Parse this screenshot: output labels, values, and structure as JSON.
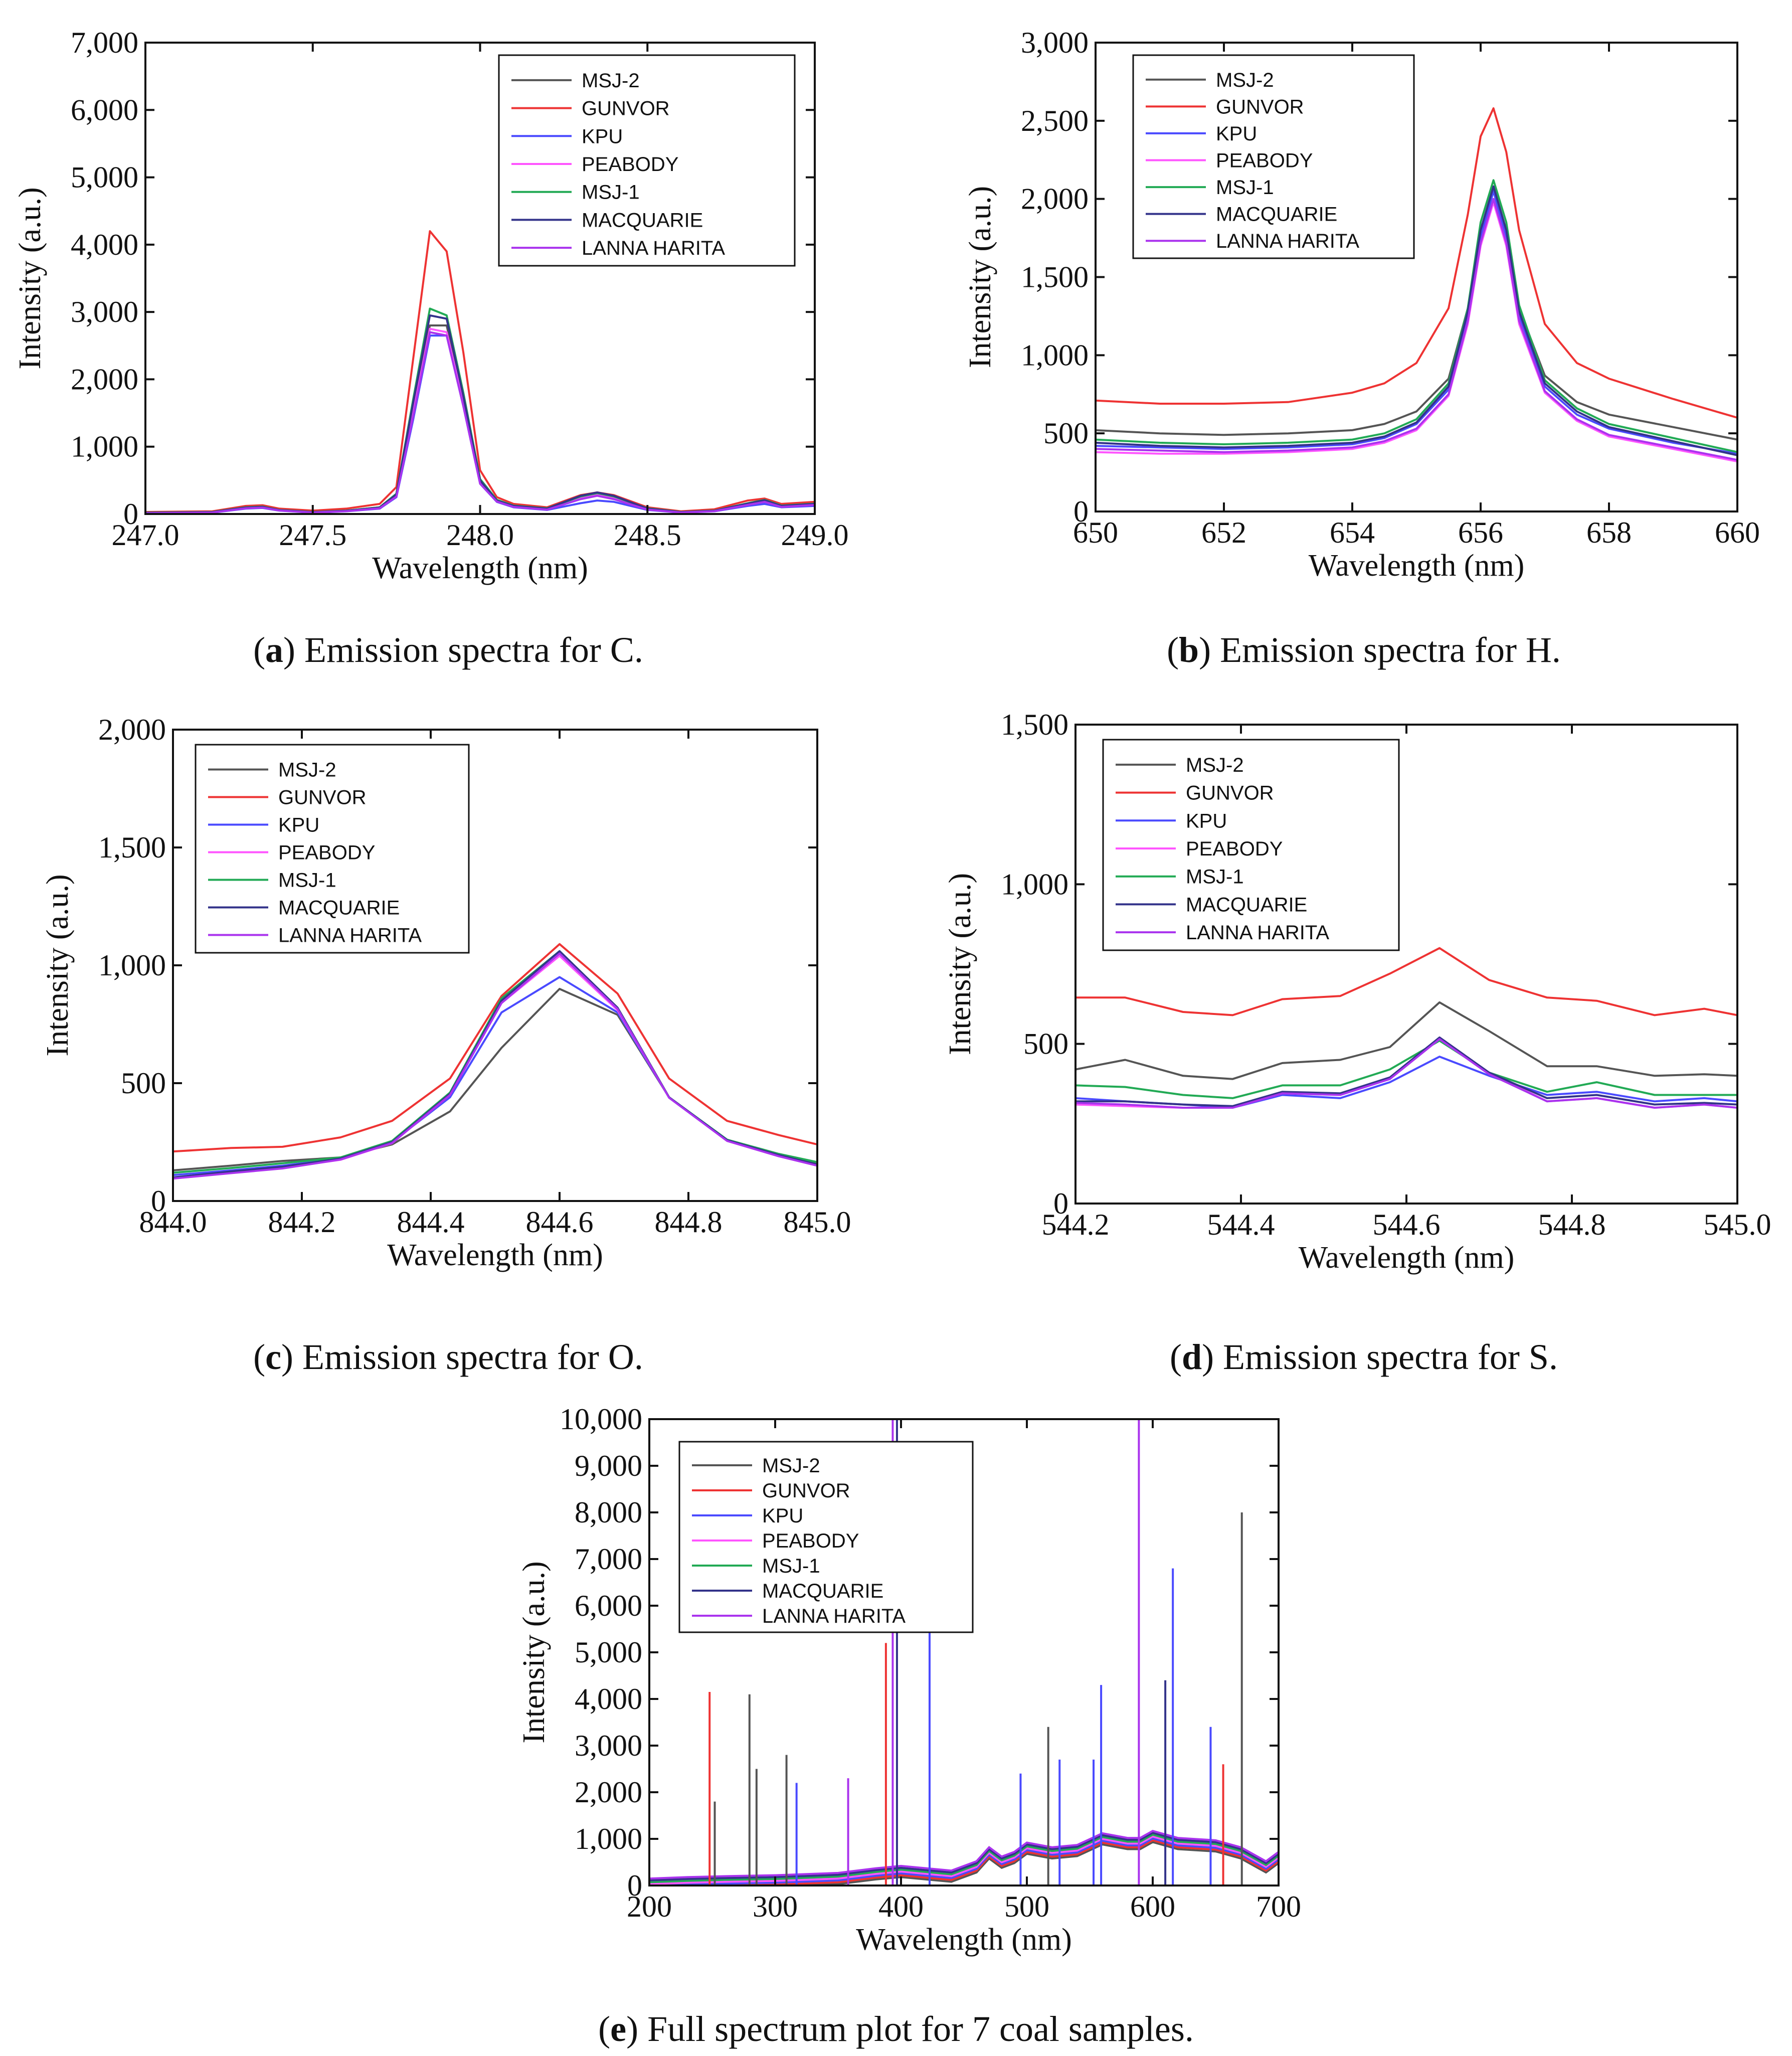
{
  "series_names": [
    "MSJ-2",
    "GUNVOR",
    "KPU",
    "PEABODY",
    "MSJ-1",
    "MACQUARIE",
    "LANNA HARITA"
  ],
  "series_colors": [
    "#555555",
    "#ee3333",
    "#4a4aff",
    "#ff55ff",
    "#22aa55",
    "#33338a",
    "#aa33ee"
  ],
  "chart_data": [
    {
      "id": "a",
      "type": "line",
      "caption": {
        "letter": "a",
        "text": "Emission spectra for C."
      },
      "xlabel": "Wavelength (nm)",
      "ylabel": "Intensity (a.u.)",
      "xlim": [
        247.0,
        249.0
      ],
      "ylim": [
        0,
        7000
      ],
      "xticks": [
        247.0,
        247.5,
        248.0,
        248.5,
        249.0
      ],
      "xtick_labels": [
        "247.0",
        "247.5",
        "248.0",
        "248.5",
        "249.0"
      ],
      "yticks": [
        0,
        1000,
        2000,
        3000,
        4000,
        5000,
        6000,
        7000
      ],
      "ytick_labels": [
        "0",
        "1,000",
        "2,000",
        "3,000",
        "4,000",
        "5,000",
        "6,000",
        "7,000"
      ],
      "legend": "top-right",
      "x": [
        247.0,
        247.1,
        247.2,
        247.3,
        247.35,
        247.4,
        247.5,
        247.6,
        247.7,
        247.75,
        247.8,
        247.85,
        247.9,
        247.95,
        248.0,
        248.05,
        248.1,
        248.2,
        248.3,
        248.35,
        248.4,
        248.5,
        248.6,
        248.7,
        248.8,
        248.85,
        248.9,
        249.0
      ],
      "series": [
        {
          "name": "MSJ-2",
          "values": [
            20,
            25,
            30,
            100,
            110,
            60,
            30,
            50,
            100,
            300,
            1600,
            2800,
            2800,
            1700,
            500,
            200,
            120,
            80,
            250,
            300,
            250,
            80,
            30,
            50,
            150,
            200,
            120,
            150
          ]
        },
        {
          "name": "GUNVOR",
          "values": [
            30,
            35,
            40,
            120,
            130,
            80,
            50,
            80,
            150,
            400,
            2300,
            4200,
            3900,
            2400,
            650,
            250,
            150,
            100,
            280,
            320,
            280,
            100,
            40,
            70,
            200,
            230,
            150,
            180
          ]
        },
        {
          "name": "KPU",
          "values": [
            10,
            15,
            20,
            80,
            90,
            50,
            20,
            40,
            80,
            250,
            1400,
            2650,
            2650,
            1600,
            450,
            180,
            100,
            60,
            160,
            200,
            180,
            60,
            20,
            40,
            120,
            150,
            100,
            120
          ]
        },
        {
          "name": "PEABODY",
          "values": [
            15,
            20,
            25,
            90,
            100,
            55,
            25,
            45,
            90,
            270,
            1500,
            2750,
            2700,
            1650,
            460,
            190,
            110,
            70,
            230,
            280,
            230,
            70,
            25,
            45,
            140,
            190,
            110,
            140
          ]
        },
        {
          "name": "MSJ-1",
          "values": [
            20,
            25,
            30,
            100,
            110,
            60,
            30,
            50,
            100,
            300,
            1700,
            3050,
            2950,
            1800,
            520,
            210,
            125,
            85,
            260,
            310,
            260,
            85,
            30,
            50,
            160,
            210,
            125,
            155
          ]
        },
        {
          "name": "MACQUARIE",
          "values": [
            18,
            22,
            28,
            95,
            105,
            58,
            28,
            48,
            95,
            290,
            1650,
            2950,
            2900,
            1750,
            500,
            200,
            120,
            80,
            270,
            320,
            270,
            80,
            28,
            48,
            155,
            205,
            120,
            150
          ]
        },
        {
          "name": "LANNA HARITA",
          "values": [
            12,
            18,
            22,
            85,
            95,
            52,
            22,
            42,
            85,
            260,
            1450,
            2700,
            2650,
            1600,
            450,
            185,
            105,
            65,
            220,
            270,
            220,
            65,
            22,
            42,
            135,
            180,
            105,
            135
          ]
        }
      ]
    },
    {
      "id": "b",
      "type": "line",
      "caption": {
        "letter": "b",
        "text": "Emission spectra for H."
      },
      "xlabel": "Wavelength (nm)",
      "ylabel": "Intensity (a.u.)",
      "xlim": [
        650,
        660
      ],
      "ylim": [
        0,
        3000
      ],
      "xticks": [
        650,
        652,
        654,
        656,
        658,
        660
      ],
      "xtick_labels": [
        "650",
        "652",
        "654",
        "656",
        "658",
        "660"
      ],
      "yticks": [
        0,
        500,
        1000,
        1500,
        2000,
        2500,
        3000
      ],
      "ytick_labels": [
        "0",
        "500",
        "1,000",
        "1,500",
        "2,000",
        "2,500",
        "3,000"
      ],
      "legend": "top-left",
      "x": [
        650,
        651,
        652,
        653,
        654,
        654.5,
        655,
        655.5,
        655.8,
        656,
        656.2,
        656.4,
        656.6,
        657,
        657.5,
        658,
        659,
        660
      ],
      "series": [
        {
          "name": "MSJ-2",
          "values": [
            520,
            500,
            490,
            500,
            520,
            560,
            640,
            850,
            1300,
            1800,
            2050,
            1800,
            1300,
            870,
            700,
            620,
            540,
            460
          ]
        },
        {
          "name": "GUNVOR",
          "values": [
            710,
            690,
            690,
            700,
            760,
            820,
            950,
            1300,
            1900,
            2400,
            2580,
            2300,
            1800,
            1200,
            950,
            850,
            720,
            600
          ]
        },
        {
          "name": "KPU",
          "values": [
            420,
            410,
            400,
            410,
            430,
            470,
            560,
            780,
            1250,
            1750,
            2050,
            1750,
            1250,
            800,
            620,
            530,
            440,
            370
          ]
        },
        {
          "name": "PEABODY",
          "values": [
            380,
            370,
            370,
            380,
            400,
            440,
            520,
            740,
            1200,
            1700,
            1980,
            1700,
            1200,
            760,
            580,
            480,
            400,
            320
          ]
        },
        {
          "name": "MSJ-1",
          "values": [
            460,
            440,
            430,
            440,
            460,
            500,
            590,
            820,
            1300,
            1850,
            2120,
            1850,
            1320,
            840,
            660,
            560,
            470,
            380
          ]
        },
        {
          "name": "MACQUARIE",
          "values": [
            440,
            420,
            410,
            420,
            440,
            480,
            570,
            800,
            1280,
            1800,
            2080,
            1800,
            1280,
            820,
            640,
            540,
            450,
            360
          ]
        },
        {
          "name": "LANNA HARITA",
          "values": [
            400,
            390,
            380,
            390,
            410,
            450,
            530,
            750,
            1220,
            1720,
            2000,
            1720,
            1220,
            770,
            590,
            490,
            410,
            330
          ]
        }
      ]
    },
    {
      "id": "c",
      "type": "line",
      "caption": {
        "letter": "c",
        "text": "Emission spectra for O."
      },
      "xlabel": "Wavelength (nm)",
      "ylabel": "Intensity (a.u.)",
      "xlim": [
        844.0,
        845.0
      ],
      "ylim": [
        0,
        2000
      ],
      "xticks": [
        844.0,
        844.2,
        844.4,
        844.6,
        844.8,
        845.0
      ],
      "xtick_labels": [
        "844.0",
        "844.2",
        "844.4",
        "844.6",
        "844.8",
        "845.0"
      ],
      "yticks": [
        0,
        500,
        1000,
        1500,
        2000
      ],
      "ytick_labels": [
        "0",
        "500",
        "1,000",
        "1,500",
        "2,000"
      ],
      "legend": "top-left",
      "x": [
        844.0,
        844.09,
        844.17,
        844.26,
        844.34,
        844.43,
        844.51,
        844.6,
        844.69,
        844.77,
        844.86,
        844.94,
        845.0
      ],
      "series": [
        {
          "name": "MSJ-2",
          "values": [
            130,
            150,
            170,
            185,
            240,
            380,
            650,
            900,
            790,
            440,
            260,
            200,
            160
          ]
        },
        {
          "name": "GUNVOR",
          "values": [
            210,
            225,
            230,
            270,
            340,
            520,
            870,
            1090,
            880,
            520,
            340,
            280,
            240
          ]
        },
        {
          "name": "KPU",
          "values": [
            110,
            130,
            150,
            180,
            250,
            440,
            800,
            950,
            800,
            440,
            260,
            195,
            155
          ]
        },
        {
          "name": "PEABODY",
          "values": [
            95,
            120,
            140,
            175,
            245,
            450,
            840,
            1040,
            810,
            440,
            255,
            190,
            150
          ]
        },
        {
          "name": "MSJ-1",
          "values": [
            120,
            140,
            160,
            185,
            255,
            460,
            860,
            1060,
            820,
            440,
            260,
            200,
            165
          ]
        },
        {
          "name": "MACQUARIE",
          "values": [
            100,
            125,
            145,
            180,
            250,
            455,
            850,
            1060,
            820,
            440,
            258,
            195,
            155
          ]
        },
        {
          "name": "LANNA HARITA",
          "values": [
            95,
            118,
            138,
            176,
            246,
            450,
            840,
            1050,
            815,
            438,
            255,
            190,
            150
          ]
        }
      ]
    },
    {
      "id": "d",
      "type": "line",
      "caption": {
        "letter": "d",
        "text": "Emission spectra for S."
      },
      "xlabel": "Wavelength (nm)",
      "ylabel": "Intensity (a.u.)",
      "xlim": [
        544.2,
        545.0
      ],
      "ylim": [
        0,
        1500
      ],
      "xticks": [
        544.2,
        544.4,
        544.6,
        544.8,
        545.0
      ],
      "xtick_labels": [
        "544.2",
        "544.4",
        "544.6",
        "544.8",
        "545.0"
      ],
      "yticks": [
        0,
        500,
        1000,
        1500
      ],
      "ytick_labels": [
        "0",
        "500",
        "1,000",
        "1,500"
      ],
      "legend": "top-left",
      "x": [
        544.2,
        544.26,
        544.33,
        544.39,
        544.45,
        544.52,
        544.58,
        544.64,
        544.7,
        544.77,
        544.83,
        544.9,
        544.96,
        545.0
      ],
      "series": [
        {
          "name": "MSJ-2",
          "values": [
            420,
            450,
            400,
            390,
            440,
            450,
            490,
            630,
            540,
            430,
            430,
            400,
            405,
            400
          ]
        },
        {
          "name": "GUNVOR",
          "values": [
            645,
            645,
            600,
            590,
            640,
            650,
            720,
            800,
            700,
            645,
            635,
            590,
            610,
            590
          ]
        },
        {
          "name": "KPU",
          "values": [
            330,
            320,
            310,
            300,
            340,
            330,
            380,
            460,
            400,
            340,
            350,
            320,
            330,
            320
          ]
        },
        {
          "name": "PEABODY",
          "values": [
            310,
            305,
            300,
            300,
            345,
            340,
            390,
            520,
            410,
            320,
            330,
            300,
            310,
            300
          ]
        },
        {
          "name": "MSJ-1",
          "values": [
            370,
            365,
            340,
            330,
            370,
            370,
            420,
            510,
            410,
            350,
            380,
            340,
            340,
            340
          ]
        },
        {
          "name": "MACQUARIE",
          "values": [
            320,
            320,
            310,
            305,
            350,
            345,
            395,
            520,
            410,
            330,
            340,
            310,
            315,
            310
          ]
        },
        {
          "name": "LANNA HARITA",
          "values": [
            315,
            310,
            300,
            300,
            345,
            340,
            390,
            515,
            405,
            320,
            330,
            300,
            310,
            300
          ]
        }
      ]
    },
    {
      "id": "e",
      "type": "line",
      "caption": {
        "letter": "e",
        "text": "Full spectrum plot for 7 coal samples."
      },
      "xlabel": "Wavelength (nm)",
      "ylabel": "Intensity (a.u.)",
      "xlim": [
        200,
        700
      ],
      "ylim": [
        0,
        10000
      ],
      "xticks": [
        200,
        300,
        400,
        500,
        600,
        700
      ],
      "xtick_labels": [
        "200",
        "300",
        "400",
        "500",
        "600",
        "700"
      ],
      "yticks": [
        0,
        1000,
        2000,
        3000,
        4000,
        5000,
        6000,
        7000,
        8000,
        9000,
        10000
      ],
      "ytick_labels": [
        "0",
        "1,000",
        "2,000",
        "3,000",
        "4,000",
        "5,000",
        "6,000",
        "7,000",
        "8,000",
        "9,000",
        "10,000"
      ],
      "legend": "top-left",
      "baseline": {
        "x": [
          200,
          230,
          260,
          300,
          350,
          380,
          400,
          440,
          460,
          470,
          480,
          490,
          500,
          520,
          540,
          560,
          580,
          590,
          600,
          620,
          650,
          670,
          690,
          700
        ],
        "values": [
          30,
          60,
          80,
          100,
          150,
          250,
          300,
          200,
          400,
          700,
          500,
          600,
          800,
          700,
          750,
          1000,
          900,
          900,
          1050,
          900,
          850,
          700,
          400,
          600
        ]
      },
      "peaks": [
        {
          "x": 247.9,
          "value": 4150,
          "series": "GUNVOR"
        },
        {
          "x": 252,
          "value": 1800,
          "series": "MSJ-2"
        },
        {
          "x": 279.6,
          "value": 4100,
          "series": "MSJ-2"
        },
        {
          "x": 285.2,
          "value": 2500,
          "series": "MSJ-2"
        },
        {
          "x": 309,
          "value": 2800,
          "series": "MSJ-2"
        },
        {
          "x": 317,
          "value": 2200,
          "series": "KPU"
        },
        {
          "x": 358,
          "value": 2300,
          "series": "LANNA HARITA"
        },
        {
          "x": 388,
          "value": 5200,
          "series": "GUNVOR"
        },
        {
          "x": 393.4,
          "value": 10000,
          "series": "LANNA HARITA"
        },
        {
          "x": 396.8,
          "value": 10000,
          "series": "MACQUARIE"
        },
        {
          "x": 422.7,
          "value": 6000,
          "series": "KPU"
        },
        {
          "x": 495,
          "value": 2400,
          "series": "KPU"
        },
        {
          "x": 517,
          "value": 3400,
          "series": "MSJ-2"
        },
        {
          "x": 526,
          "value": 2700,
          "series": "KPU"
        },
        {
          "x": 553,
          "value": 2700,
          "series": "KPU"
        },
        {
          "x": 559,
          "value": 4300,
          "series": "KPU"
        },
        {
          "x": 589,
          "value": 10000,
          "series": "LANNA HARITA"
        },
        {
          "x": 610,
          "value": 4400,
          "series": "MACQUARIE"
        },
        {
          "x": 616,
          "value": 6800,
          "series": "KPU"
        },
        {
          "x": 646,
          "value": 3400,
          "series": "KPU"
        },
        {
          "x": 656,
          "value": 2600,
          "series": "GUNVOR"
        },
        {
          "x": 670.8,
          "value": 8000,
          "series": "MSJ-2"
        }
      ]
    }
  ]
}
